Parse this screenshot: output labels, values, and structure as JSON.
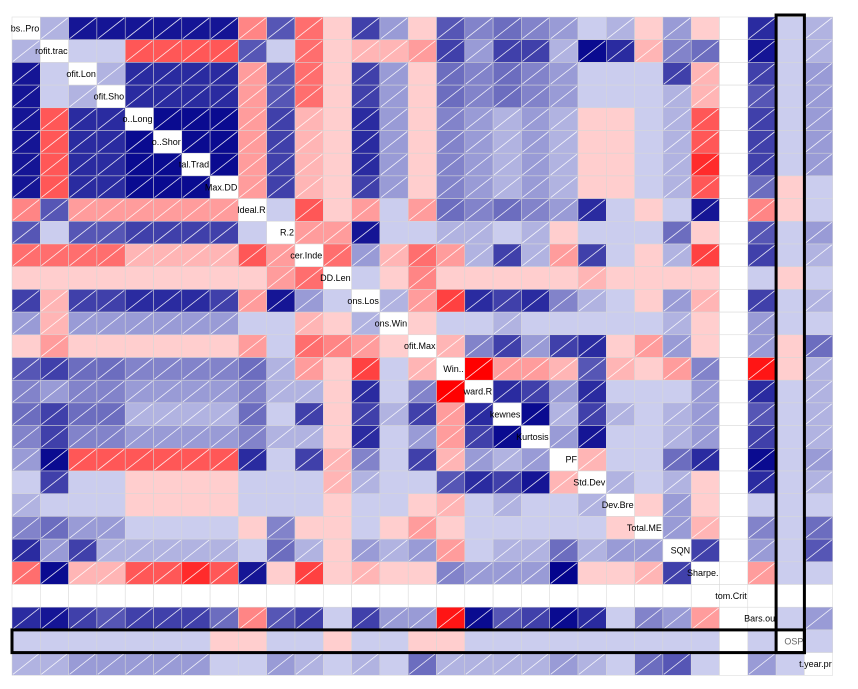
{
  "chart_data": {
    "type": "heatmap",
    "title": "",
    "variables": [
      "bs..Pro",
      "rofit.trac",
      "ofit.Lon",
      "ofit.Sho",
      "o..Long",
      "o..Shor",
      "tal.Trad",
      "Max.DD",
      "Ideal.R",
      "R.2",
      "cer.Inde",
      "DD.Len",
      "ons.Los",
      "ons.Win",
      "ofit.Max",
      "Win..",
      "ward.R",
      "kewnes",
      "Kurtosis",
      "PF",
      "Std.Dev",
      "Dev.Bre",
      "Total.ME",
      "SQN",
      "Sharpe.",
      "tom.Crit",
      "Bars.ou",
      "OSP",
      "t.year.pr"
    ],
    "color_scale": {
      "negative": "#00008b",
      "zero": "#ffffff",
      "positive": "#ff0000",
      "min": -1,
      "max": 1
    },
    "values": [
      [
        1,
        -0.2,
        -0.9,
        -0.9,
        -0.9,
        -0.9,
        -0.9,
        -0.9,
        0.4,
        -0.6,
        0.5,
        0.1,
        -0.7,
        -0.3,
        0.1,
        -0.6,
        -0.4,
        -0.5,
        -0.4,
        -0.3,
        -0.1,
        -0.2,
        0.1,
        -0.3,
        0.1,
        0,
        -0.8,
        -0.1,
        -0.2
      ],
      [
        -0.2,
        1,
        -0.1,
        -0.1,
        0.6,
        0.6,
        0.6,
        0.6,
        -0.6,
        -0.1,
        0.5,
        0.1,
        0.2,
        0.2,
        0.3,
        -0.7,
        -0.3,
        -0.7,
        -0.7,
        -0.2,
        -0.95,
        -0.8,
        0.2,
        -0.4,
        -0.5,
        0,
        -0.9,
        -0.1,
        -0.2
      ],
      [
        -0.9,
        -0.1,
        1,
        -0.2,
        -0.8,
        -0.8,
        -0.8,
        -0.8,
        0.3,
        -0.6,
        0.5,
        0.1,
        -0.7,
        -0.3,
        0.1,
        -0.5,
        -0.4,
        -0.5,
        -0.4,
        -0.3,
        -0.1,
        -0.1,
        -0.1,
        -0.7,
        0.2,
        0,
        -0.7,
        -0.1,
        -0.3
      ],
      [
        -0.9,
        -0.1,
        -0.2,
        1,
        -0.8,
        -0.8,
        -0.8,
        -0.8,
        0.3,
        -0.6,
        0.5,
        0.1,
        -0.7,
        -0.3,
        0.1,
        -0.5,
        -0.4,
        -0.5,
        -0.4,
        -0.3,
        -0.1,
        -0.1,
        -0.1,
        -0.2,
        0.2,
        0,
        -0.6,
        -0.1,
        -0.3
      ],
      [
        -0.9,
        0.6,
        -0.8,
        -0.8,
        1,
        -0.95,
        -0.95,
        -0.95,
        0.3,
        -0.7,
        0.2,
        0.1,
        -0.8,
        -0.3,
        0.1,
        -0.4,
        -0.3,
        -0.2,
        -0.3,
        -0.2,
        0.1,
        0.1,
        -0.1,
        -0.2,
        0.6,
        0,
        -0.7,
        -0.1,
        -0.3
      ],
      [
        -0.9,
        0.6,
        -0.8,
        -0.8,
        -0.95,
        1,
        -0.95,
        -0.95,
        0.3,
        -0.7,
        0.2,
        0.1,
        -0.8,
        -0.3,
        0.1,
        -0.4,
        -0.3,
        -0.2,
        -0.3,
        -0.2,
        0.1,
        0.1,
        -0.1,
        -0.2,
        0.6,
        0,
        -0.7,
        -0.1,
        -0.3
      ],
      [
        -0.9,
        0.6,
        -0.8,
        -0.8,
        -0.95,
        -0.95,
        1,
        -0.95,
        0.3,
        -0.7,
        0.2,
        0.1,
        -0.8,
        -0.3,
        0.1,
        -0.4,
        -0.3,
        -0.2,
        -0.3,
        -0.2,
        0.1,
        0.1,
        -0.1,
        -0.2,
        0.8,
        0,
        -0.7,
        -0.1,
        -0.3
      ],
      [
        -0.9,
        0.6,
        -0.8,
        -0.8,
        -0.95,
        -0.95,
        -0.95,
        1,
        0.3,
        -0.7,
        0.2,
        0.1,
        -0.7,
        -0.3,
        0.1,
        -0.4,
        -0.3,
        -0.2,
        -0.3,
        -0.2,
        0.1,
        0.1,
        -0.1,
        -0.2,
        0.6,
        0,
        -0.5,
        0.1,
        -0.1
      ],
      [
        0.4,
        -0.6,
        0.3,
        0.3,
        0.3,
        0.3,
        0.3,
        0.3,
        1,
        -0.1,
        0.6,
        0.1,
        0.3,
        -0.1,
        0.3,
        -0.5,
        -0.4,
        -0.5,
        -0.4,
        -0.3,
        -0.8,
        -0.1,
        0.1,
        -0.1,
        -0.9,
        0,
        0.4,
        0.1,
        -0.1
      ],
      [
        -0.6,
        -0.1,
        -0.6,
        -0.6,
        -0.7,
        -0.7,
        -0.7,
        -0.7,
        -0.1,
        1,
        0.3,
        0.3,
        -0.9,
        -0.1,
        -0.1,
        -0.2,
        -0.2,
        -0.1,
        -0.2,
        0.1,
        -0.1,
        -0.1,
        -0.1,
        -0.5,
        0.1,
        0,
        -0.6,
        -0.1,
        -0.3
      ],
      [
        0.5,
        0.5,
        0.5,
        0.5,
        0.2,
        0.2,
        0.2,
        0.2,
        0.6,
        0.3,
        1,
        0.5,
        -0.3,
        0.2,
        0.5,
        0.3,
        -0.2,
        -0.7,
        -0.2,
        0.3,
        -0.7,
        -0.1,
        0.1,
        -0.2,
        0.7,
        0,
        -0.7,
        -0.1,
        -0.2
      ],
      [
        0.1,
        0.1,
        0.1,
        0.1,
        0.1,
        0.1,
        0.1,
        0.1,
        0.1,
        0.3,
        0.5,
        1,
        -0.1,
        0.1,
        0.4,
        0.1,
        0.1,
        0.1,
        0.1,
        0.1,
        0.2,
        0.1,
        0.1,
        0.1,
        0.1,
        0,
        -0.1,
        0.1,
        -0.1
      ],
      [
        -0.7,
        0.2,
        -0.7,
        -0.7,
        -0.8,
        -0.8,
        -0.8,
        -0.7,
        0.3,
        -0.9,
        -0.3,
        -0.1,
        1,
        -0.2,
        0.3,
        0.7,
        -0.8,
        -0.7,
        -0.8,
        -0.4,
        -0.2,
        -0.1,
        0.1,
        -0.3,
        0.2,
        0,
        -0.7,
        -0.1,
        -0.2
      ],
      [
        -0.3,
        0.2,
        -0.3,
        -0.3,
        -0.3,
        -0.3,
        -0.3,
        -0.3,
        -0.1,
        -0.1,
        0.2,
        0.1,
        -0.2,
        1,
        0.1,
        -0.1,
        -0.1,
        -0.2,
        -0.1,
        -0.1,
        -0.1,
        -0.1,
        -0.1,
        -0.2,
        0.1,
        0,
        -0.3,
        -0.1,
        -0.1
      ],
      [
        0.1,
        0.3,
        0.1,
        0.1,
        0.1,
        0.1,
        0.1,
        0.1,
        0.3,
        -0.1,
        0.5,
        0.4,
        0.3,
        0.1,
        1,
        0.2,
        -0.4,
        -0.7,
        -0.3,
        -0.7,
        -0.8,
        0.1,
        0.3,
        -0.3,
        0.1,
        0,
        -0.3,
        0.1,
        -0.5
      ],
      [
        -0.6,
        -0.7,
        -0.5,
        -0.5,
        -0.4,
        -0.4,
        -0.4,
        -0.4,
        -0.5,
        -0.2,
        0.3,
        0.1,
        0.7,
        -0.1,
        0.2,
        1,
        1,
        0.3,
        0.3,
        0.2,
        -0.6,
        0.2,
        0.1,
        0.3,
        -0.4,
        0,
        0.9,
        0.1,
        -0.2
      ],
      [
        -0.4,
        -0.3,
        -0.4,
        -0.4,
        -0.3,
        -0.3,
        -0.3,
        -0.3,
        -0.4,
        -0.2,
        -0.2,
        0.1,
        -0.8,
        -0.1,
        -0.4,
        1,
        1,
        -0.8,
        -0.7,
        -0.3,
        -0.8,
        -0.1,
        -0.1,
        -0.1,
        -0.3,
        0,
        -0.8,
        -0.1,
        -0.2
      ],
      [
        -0.5,
        -0.7,
        -0.5,
        -0.5,
        -0.2,
        -0.2,
        -0.2,
        -0.2,
        -0.5,
        -0.1,
        -0.7,
        0.1,
        -0.7,
        -0.2,
        -0.7,
        0.3,
        -0.8,
        1,
        -0.95,
        -0.2,
        -0.7,
        -0.2,
        -0.1,
        -0.2,
        -0.3,
        0,
        -0.6,
        -0.1,
        -0.2
      ],
      [
        -0.4,
        -0.7,
        -0.4,
        -0.4,
        -0.3,
        -0.3,
        -0.3,
        -0.3,
        -0.4,
        -0.2,
        -0.2,
        0.1,
        -0.8,
        -0.1,
        -0.3,
        0.3,
        -0.7,
        -0.95,
        1,
        -0.3,
        -0.9,
        -0.1,
        -0.1,
        -0.2,
        -0.3,
        0,
        -0.7,
        -0.1,
        -0.2
      ],
      [
        -0.3,
        -0.95,
        0.6,
        0.6,
        0.6,
        0.6,
        0.6,
        0.6,
        -0.8,
        -0.1,
        -0.7,
        0.2,
        -0.4,
        -0.1,
        -0.7,
        0.2,
        -0.3,
        -0.2,
        -0.3,
        1,
        0.2,
        -0.1,
        -0.1,
        -0.5,
        -0.8,
        0,
        -0.95,
        -0.1,
        -0.3
      ],
      [
        -0.1,
        -0.7,
        -0.1,
        -0.1,
        0.1,
        0.1,
        0.1,
        0.1,
        -0.1,
        -0.1,
        -0.1,
        0.2,
        -0.2,
        -0.1,
        -0.1,
        -0.6,
        -0.8,
        -0.7,
        -0.9,
        0.2,
        1,
        -0.2,
        -0.1,
        -0.2,
        0.1,
        0,
        -0.8,
        -0.1,
        -0.2
      ],
      [
        -0.2,
        -0.1,
        -0.1,
        -0.1,
        0.1,
        0.1,
        0.1,
        0.1,
        -0.1,
        -0.1,
        -0.1,
        0.1,
        -0.1,
        -0.1,
        0.1,
        0.2,
        -0.1,
        -0.2,
        -0.1,
        -0.1,
        -0.2,
        1,
        0.1,
        -0.3,
        0.1,
        0,
        -0.1,
        -0.1,
        -0.1
      ],
      [
        -0.4,
        -0.5,
        -0.3,
        -0.3,
        -0.1,
        -0.1,
        -0.1,
        -0.1,
        0.1,
        -0.4,
        0.1,
        0.1,
        -0.1,
        0.1,
        0.3,
        0.1,
        -0.1,
        -0.1,
        -0.1,
        -0.1,
        -0.1,
        0.1,
        1,
        -0.3,
        0.2,
        0,
        -0.4,
        -0.1,
        -0.5
      ],
      [
        -0.8,
        -0.3,
        -0.7,
        -0.2,
        -0.2,
        -0.2,
        -0.2,
        -0.2,
        -0.1,
        -0.5,
        -0.2,
        0.1,
        -0.3,
        -0.2,
        -0.3,
        0.3,
        -0.1,
        -0.2,
        -0.2,
        -0.5,
        -0.2,
        -0.3,
        -0.3,
        1,
        -0.7,
        0,
        -0.3,
        -0.1,
        -0.6
      ],
      [
        0.5,
        -0.95,
        0.2,
        0.2,
        0.6,
        0.6,
        0.8,
        0.6,
        -0.9,
        0.1,
        0.7,
        0.1,
        0.2,
        0.1,
        0.1,
        -0.4,
        -0.3,
        -0.3,
        -0.3,
        -0.98,
        0.1,
        0.1,
        0.2,
        -0.7,
        1,
        0,
        0.3,
        -0.1,
        -0.1
      ],
      [
        0,
        0,
        0,
        0,
        0,
        0,
        0,
        0,
        0,
        0,
        0,
        0,
        0,
        0,
        0,
        0,
        0,
        0,
        0,
        0,
        0,
        0,
        0,
        0,
        0,
        1,
        0,
        0,
        0
      ],
      [
        -0.8,
        -0.9,
        -0.7,
        -0.6,
        -0.7,
        -0.7,
        -0.7,
        -0.5,
        0.4,
        -0.6,
        -0.7,
        -0.1,
        -0.7,
        -0.3,
        -0.3,
        0.9,
        -0.95,
        -0.6,
        -0.7,
        -0.95,
        -0.8,
        -0.1,
        -0.4,
        -0.3,
        0.3,
        0,
        1,
        -0.1,
        -0.3
      ],
      [
        -0.1,
        -0.1,
        -0.1,
        -0.1,
        -0.1,
        -0.1,
        -0.1,
        0.1,
        0.1,
        -0.1,
        -0.1,
        0.1,
        -0.1,
        -0.1,
        0.1,
        0.1,
        -0.1,
        -0.1,
        -0.1,
        -0.1,
        -0.1,
        -0.1,
        -0.1,
        -0.1,
        -0.1,
        0,
        -0.1,
        1,
        -0.1
      ],
      [
        -0.2,
        -0.2,
        -0.3,
        -0.3,
        -0.3,
        -0.3,
        -0.3,
        -0.1,
        -0.1,
        -0.3,
        -0.2,
        -0.1,
        -0.2,
        -0.1,
        -0.5,
        -0.2,
        -0.2,
        -0.2,
        -0.2,
        -0.3,
        -0.2,
        -0.1,
        -0.5,
        -0.6,
        -0.1,
        0,
        -0.3,
        -0.1,
        1
      ]
    ],
    "highlight": {
      "row": "OSP",
      "column": "OSP"
    }
  }
}
